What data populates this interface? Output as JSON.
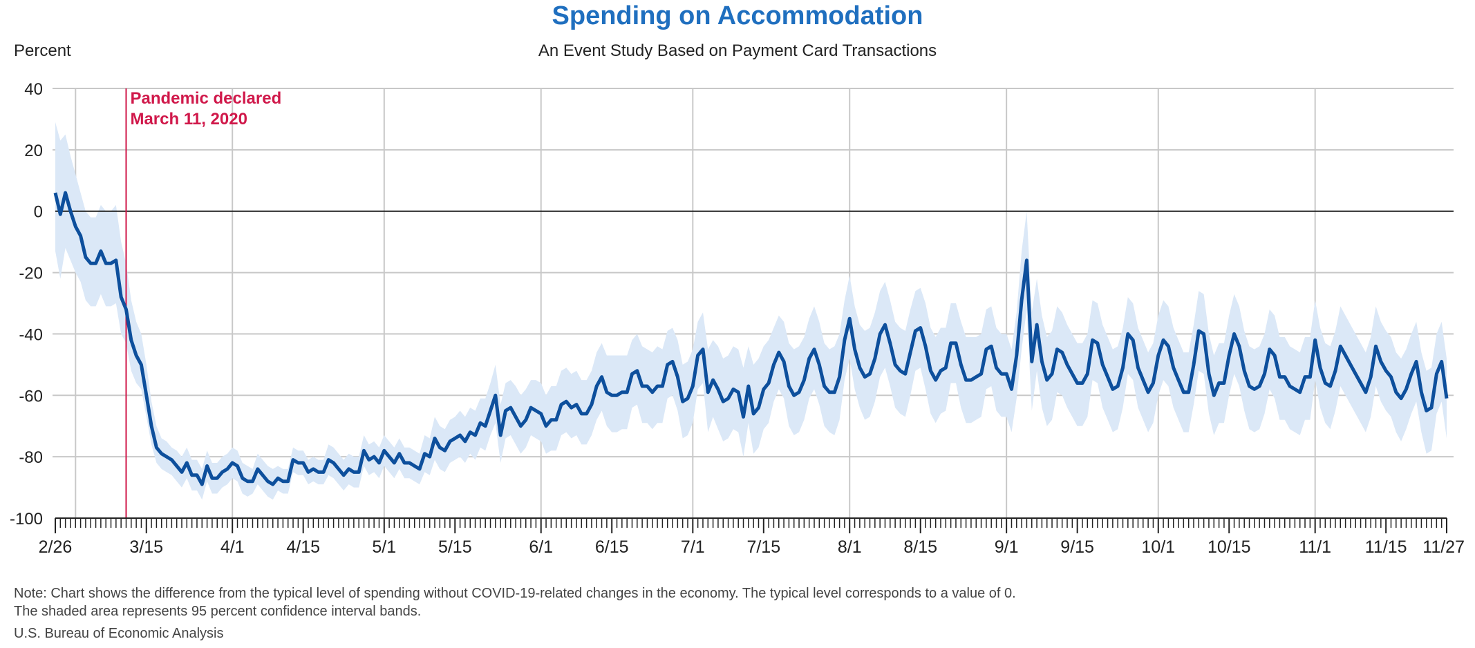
{
  "title": "Spending on Accommodation",
  "subtitle": "An Event Study Based on Payment Card Transactions",
  "y_unit_label": "Percent",
  "annotation": {
    "line1": "Pandemic declared",
    "line2": "March 11, 2020",
    "date": "3/11"
  },
  "note_line1": "Note: Chart shows the difference from the typical level of spending without COVID-19-related changes in the economy. The typical level corresponds to a value of 0.",
  "note_line2": "The shaded area represents 95 percent confidence interval bands.",
  "source": "U.S. Bureau of Economic Analysis",
  "colors": {
    "title": "#1f6fbf",
    "line": "#0d4f9c",
    "band": "#dbe8f7",
    "annotation": "#d0184a",
    "grid": "#c8c8c8",
    "zero_line": "#222222"
  },
  "chart_data": {
    "type": "line",
    "title": "Spending on Accommodation",
    "subtitle": "An Event Study Based on Payment Card Transactions",
    "ylabel": "Percent",
    "ylim": [
      -100,
      40
    ],
    "yticks": [
      40,
      20,
      0,
      -20,
      -40,
      -60,
      -80,
      -100
    ],
    "x_start": "2/26",
    "x_end": "11/27",
    "x_ticks": [
      {
        "label": "2/26",
        "day": 0
      },
      {
        "label": "3/15",
        "day": 18
      },
      {
        "label": "4/1",
        "day": 35
      },
      {
        "label": "4/15",
        "day": 49
      },
      {
        "label": "5/1",
        "day": 65
      },
      {
        "label": "5/15",
        "day": 79
      },
      {
        "label": "6/1",
        "day": 96
      },
      {
        "label": "6/15",
        "day": 110
      },
      {
        "label": "7/1",
        "day": 126
      },
      {
        "label": "7/15",
        "day": 140
      },
      {
        "label": "8/1",
        "day": 157
      },
      {
        "label": "8/15",
        "day": 171
      },
      {
        "label": "9/1",
        "day": 188
      },
      {
        "label": "9/15",
        "day": 202
      },
      {
        "label": "10/1",
        "day": 218
      },
      {
        "label": "10/15",
        "day": 232
      },
      {
        "label": "11/1",
        "day": 249
      },
      {
        "label": "11/15",
        "day": 263
      },
      {
        "label": "11/27",
        "day": 275
      }
    ],
    "grid_days": [
      4,
      35,
      65,
      96,
      126,
      157,
      188,
      218,
      249
    ],
    "grid": true,
    "series": [
      {
        "values": [
          6,
          -1,
          6,
          0,
          -5,
          -8,
          -15,
          -17,
          -17,
          -13,
          -17,
          -17,
          -16,
          -28,
          -32,
          -42,
          -47,
          -50,
          -60,
          -70,
          -77,
          -79,
          -80,
          -81,
          -83,
          -85,
          -82,
          -86,
          -86,
          -89,
          -83,
          -87,
          -87,
          -85,
          -84,
          -82,
          -83,
          -87,
          -88,
          -88,
          -84,
          -86,
          -88,
          -89,
          -87,
          -88,
          -88,
          -81,
          -82,
          -82,
          -85,
          -84,
          -85,
          -85,
          -81,
          -82,
          -84,
          -86,
          -84,
          -85,
          -85,
          -78,
          -81,
          -80,
          -82,
          -78,
          -80,
          -82,
          -79,
          -82,
          -82,
          -83,
          -84,
          -79,
          -80,
          -74,
          -77,
          -78,
          -75,
          -74,
          -73,
          -75,
          -72,
          -73,
          -69,
          -70,
          -65,
          -60,
          -73,
          -65,
          -64,
          -67,
          -70,
          -68,
          -64,
          -65,
          -66,
          -70,
          -68,
          -68,
          -63,
          -62,
          -64,
          -63,
          -66,
          -66,
          -63,
          -57,
          -54,
          -59,
          -60,
          -60,
          -59,
          -59,
          -53,
          -52,
          -57,
          -57,
          -59,
          -57,
          -57,
          -50,
          -49,
          -54,
          -62,
          -61,
          -57,
          -47,
          -45,
          -59,
          -55,
          -58,
          -62,
          -61,
          -58,
          -59,
          -67,
          -57,
          -66,
          -64,
          -58,
          -56,
          -50,
          -46,
          -49,
          -57,
          -60,
          -59,
          -55,
          -48,
          -45,
          -50,
          -57,
          -59,
          -59,
          -54,
          -42,
          -35,
          -45,
          -51,
          -54,
          -53,
          -48,
          -40,
          -37,
          -43,
          -50,
          -52,
          -53,
          -46,
          -39,
          -38,
          -44,
          -52,
          -55,
          -52,
          -51,
          -43,
          -43,
          -50,
          -55,
          -55,
          -54,
          -53,
          -45,
          -44,
          -51,
          -53,
          -53,
          -58,
          -47,
          -29,
          -16,
          -49,
          -37,
          -49,
          -55,
          -53,
          -45,
          -46,
          -50,
          -53,
          -56,
          -56,
          -53,
          -42,
          -43,
          -50,
          -54,
          -58,
          -57,
          -51,
          -40,
          -42,
          -51,
          -55,
          -59,
          -56,
          -47,
          -42,
          -44,
          -51,
          -55,
          -59,
          -59,
          -50,
          -39,
          -40,
          -53,
          -60,
          -56,
          -56,
          -47,
          -40,
          -44,
          -52,
          -57,
          -58,
          -57,
          -53,
          -45,
          -47,
          -54,
          -54,
          -57,
          -58,
          -59,
          -54,
          -54,
          -42,
          -51,
          -56,
          -57,
          -52,
          -44,
          -47,
          -50,
          -53,
          -56,
          -59,
          -54,
          -44,
          -49,
          -52,
          -54,
          -59,
          -61,
          -58,
          -53,
          -49,
          -59,
          -65,
          -64,
          -53,
          -49,
          -61
        ],
        "band_upper": [
          29,
          23,
          25,
          18,
          12,
          6,
          0,
          -2,
          -2,
          2,
          0,
          0,
          2,
          -10,
          -17,
          -29,
          -36,
          -40,
          -50,
          -62,
          -70,
          -74,
          -75,
          -77,
          -78,
          -80,
          -77,
          -81,
          -81,
          -84,
          -78,
          -82,
          -82,
          -80,
          -79,
          -77,
          -78,
          -82,
          -83,
          -84,
          -79,
          -81,
          -83,
          -84,
          -83,
          -84,
          -84,
          -77,
          -78,
          -78,
          -81,
          -80,
          -81,
          -81,
          -76,
          -77,
          -79,
          -81,
          -79,
          -80,
          -80,
          -73,
          -76,
          -75,
          -77,
          -73,
          -75,
          -77,
          -74,
          -77,
          -77,
          -78,
          -79,
          -73,
          -74,
          -67,
          -70,
          -71,
          -68,
          -67,
          -65,
          -67,
          -64,
          -65,
          -61,
          -61,
          -56,
          -50,
          -63,
          -56,
          -55,
          -57,
          -60,
          -58,
          -55,
          -55,
          -56,
          -60,
          -57,
          -57,
          -52,
          -51,
          -53,
          -52,
          -55,
          -55,
          -52,
          -46,
          -43,
          -47,
          -47,
          -47,
          -47,
          -47,
          -42,
          -40,
          -44,
          -45,
          -46,
          -44,
          -45,
          -39,
          -38,
          -42,
          -50,
          -49,
          -45,
          -36,
          -33,
          -45,
          -42,
          -44,
          -48,
          -47,
          -44,
          -45,
          -51,
          -44,
          -50,
          -48,
          -44,
          -42,
          -38,
          -34,
          -36,
          -43,
          -45,
          -44,
          -41,
          -35,
          -31,
          -36,
          -43,
          -45,
          -44,
          -40,
          -29,
          -21,
          -31,
          -37,
          -39,
          -38,
          -33,
          -26,
          -23,
          -29,
          -36,
          -38,
          -39,
          -32,
          -26,
          -25,
          -30,
          -38,
          -41,
          -38,
          -38,
          -30,
          -30,
          -36,
          -41,
          -41,
          -41,
          -40,
          -32,
          -31,
          -38,
          -40,
          -40,
          -45,
          -33,
          -13,
          0,
          -33,
          -22,
          -34,
          -41,
          -39,
          -31,
          -33,
          -37,
          -40,
          -43,
          -43,
          -40,
          -29,
          -30,
          -37,
          -41,
          -45,
          -44,
          -38,
          -28,
          -30,
          -38,
          -42,
          -46,
          -43,
          -34,
          -29,
          -31,
          -38,
          -42,
          -46,
          -46,
          -37,
          -26,
          -27,
          -40,
          -47,
          -43,
          -43,
          -34,
          -27,
          -31,
          -39,
          -44,
          -45,
          -44,
          -40,
          -32,
          -34,
          -41,
          -41,
          -44,
          -45,
          -46,
          -41,
          -41,
          -29,
          -38,
          -43,
          -44,
          -39,
          -31,
          -34,
          -37,
          -40,
          -43,
          -46,
          -41,
          -31,
          -36,
          -39,
          -41,
          -46,
          -48,
          -45,
          -40,
          -36,
          -46,
          -52,
          -51,
          -40,
          -36,
          -48
        ],
        "band_lower": [
          -13,
          -22,
          -12,
          -16,
          -20,
          -23,
          -29,
          -31,
          -31,
          -27,
          -31,
          -31,
          -30,
          -40,
          -43,
          -52,
          -56,
          -58,
          -67,
          -76,
          -82,
          -84,
          -85,
          -86,
          -88,
          -90,
          -87,
          -91,
          -91,
          -94,
          -88,
          -92,
          -92,
          -90,
          -89,
          -87,
          -88,
          -92,
          -93,
          -92,
          -89,
          -91,
          -93,
          -94,
          -91,
          -92,
          -92,
          -85,
          -86,
          -86,
          -89,
          -88,
          -89,
          -89,
          -86,
          -87,
          -89,
          -91,
          -89,
          -90,
          -90,
          -83,
          -86,
          -85,
          -87,
          -83,
          -85,
          -87,
          -84,
          -87,
          -87,
          -88,
          -89,
          -85,
          -86,
          -81,
          -84,
          -85,
          -82,
          -81,
          -80,
          -82,
          -79,
          -81,
          -77,
          -78,
          -73,
          -69,
          -82,
          -74,
          -73,
          -76,
          -79,
          -77,
          -73,
          -74,
          -75,
          -79,
          -78,
          -78,
          -73,
          -72,
          -74,
          -73,
          -76,
          -76,
          -73,
          -68,
          -65,
          -70,
          -72,
          -72,
          -71,
          -71,
          -64,
          -63,
          -69,
          -69,
          -71,
          -69,
          -69,
          -61,
          -60,
          -65,
          -74,
          -73,
          -69,
          -58,
          -56,
          -72,
          -67,
          -71,
          -75,
          -74,
          -71,
          -72,
          -80,
          -69,
          -79,
          -77,
          -71,
          -69,
          -62,
          -58,
          -61,
          -70,
          -73,
          -72,
          -68,
          -61,
          -58,
          -63,
          -70,
          -72,
          -73,
          -68,
          -55,
          -48,
          -58,
          -64,
          -68,
          -67,
          -62,
          -54,
          -51,
          -57,
          -64,
          -66,
          -67,
          -60,
          -52,
          -51,
          -58,
          -66,
          -69,
          -66,
          -65,
          -56,
          -56,
          -64,
          -69,
          -69,
          -68,
          -67,
          -58,
          -57,
          -65,
          -67,
          -67,
          -72,
          -61,
          -45,
          -32,
          -65,
          -52,
          -64,
          -70,
          -68,
          -59,
          -60,
          -64,
          -67,
          -70,
          -70,
          -67,
          -55,
          -56,
          -64,
          -68,
          -72,
          -71,
          -64,
          -53,
          -55,
          -64,
          -68,
          -72,
          -69,
          -60,
          -55,
          -57,
          -64,
          -68,
          -72,
          -72,
          -63,
          -52,
          -53,
          -66,
          -73,
          -69,
          -69,
          -60,
          -53,
          -57,
          -65,
          -71,
          -72,
          -71,
          -66,
          -58,
          -61,
          -68,
          -68,
          -71,
          -72,
          -73,
          -68,
          -68,
          -55,
          -64,
          -69,
          -71,
          -65,
          -57,
          -60,
          -63,
          -66,
          -69,
          -72,
          -67,
          -57,
          -62,
          -65,
          -67,
          -72,
          -75,
          -71,
          -66,
          -62,
          -72,
          -79,
          -78,
          -66,
          -62,
          -74
        ]
      }
    ]
  }
}
